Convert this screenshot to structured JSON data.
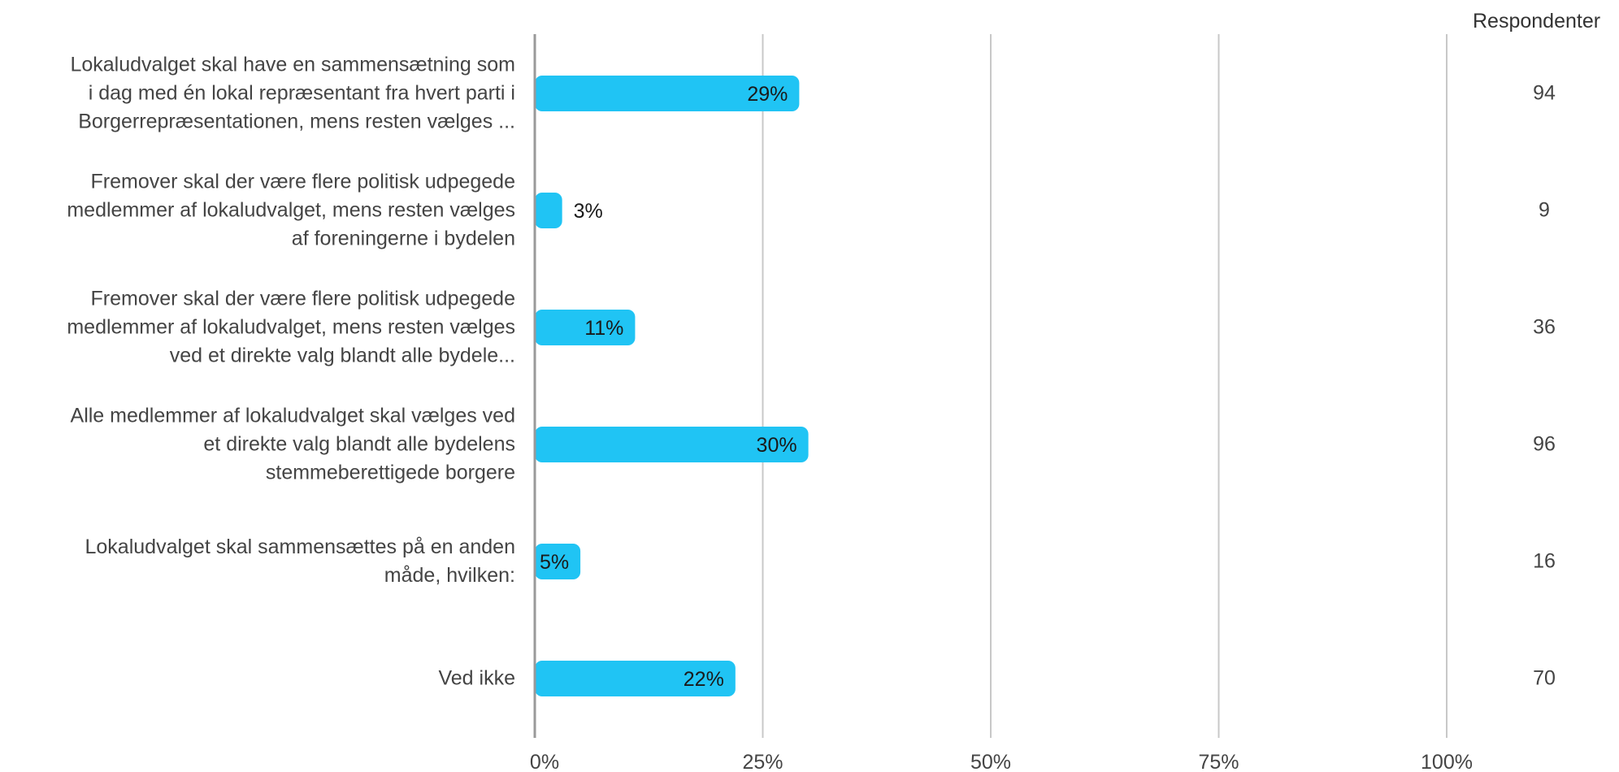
{
  "respondents_header": "Respondenter",
  "categories": [
    [
      "Lokaludvalget skal have en sammensætning som",
      "i dag med én lokal repræsentant fra hvert parti i",
      "Borgerrepræsentationen, mens resten vælges ..."
    ],
    [
      "Fremover skal der være flere politisk udpegede",
      "medlemmer af lokaludvalget, mens resten vælges",
      "af foreningerne i bydelen"
    ],
    [
      "Fremover skal der være flere politisk udpegede",
      "medlemmer af lokaludvalget, mens resten vælges",
      "ved et direkte valg blandt alle bydele..."
    ],
    [
      "Alle medlemmer af lokaludvalget skal vælges ved",
      "et direkte valg blandt alle bydelens",
      "stemmeberettigede borgere"
    ],
    [
      "Lokaludvalget skal sammensættes på en anden",
      "måde, hvilken:"
    ],
    [
      "Ved ikke"
    ]
  ],
  "respondents": [
    "94",
    "9",
    "36",
    "96",
    "16",
    "70"
  ],
  "colors": {
    "bar": "#20c4f4",
    "grid": "#c8c8c8",
    "axis": "#999999",
    "text": "#444444"
  },
  "chart_data": {
    "type": "bar",
    "orientation": "horizontal",
    "categories": [
      "Lokaludvalget skal have en sammensætning som i dag med én lokal repræsentant fra hvert parti i Borgerrepræsentationen, mens resten vælges ...",
      "Fremover skal der være flere politisk udpegede medlemmer af lokaludvalget, mens resten vælges af foreningerne i bydelen",
      "Fremover skal der være flere politisk udpegede medlemmer af lokaludvalget, mens resten vælges ved et direkte valg blandt alle bydele...",
      "Alle medlemmer af lokaludvalget skal vælges ved et direkte valg blandt alle bydelens stemmeberettigede borgere",
      "Lokaludvalget skal sammensættes på en anden måde, hvilken:",
      "Ved ikke"
    ],
    "values": [
      29,
      3,
      11,
      30,
      5,
      22
    ],
    "data_labels": [
      "29%",
      "3%",
      "11%",
      "30%",
      "5%",
      "22%"
    ],
    "xlim": [
      0,
      100
    ],
    "xticks": [
      0,
      25,
      50,
      75,
      100
    ],
    "xtick_labels": [
      "0%",
      "25%",
      "50%",
      "75%",
      "100%"
    ],
    "grid": true
  }
}
